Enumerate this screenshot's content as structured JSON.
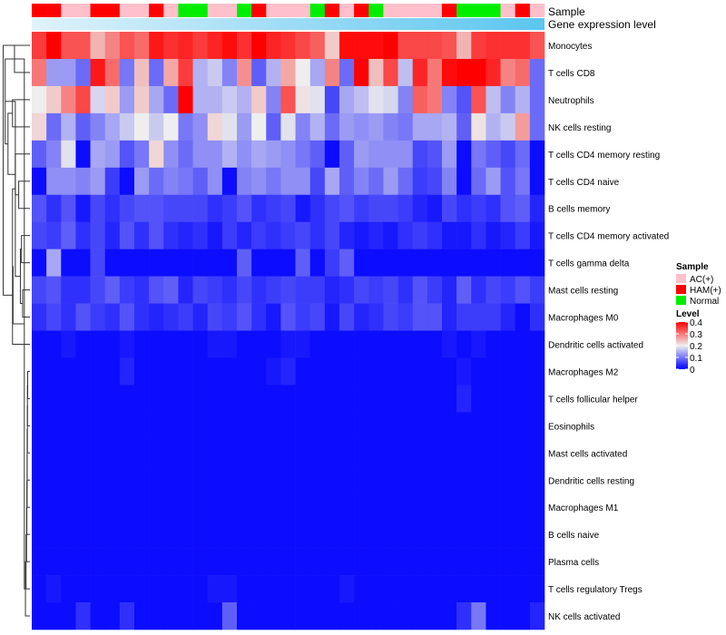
{
  "chart_data": {
    "type": "heatmap",
    "annotation_tracks": [
      {
        "name": "Sample",
        "values": [
          "HAM(+)",
          "HAM(+)",
          "AC(+)",
          "AC(+)",
          "HAM(+)",
          "HAM(+)",
          "AC(+)",
          "AC(+)",
          "HAM(+)",
          "AC(+)",
          "Normal",
          "Normal",
          "AC(+)",
          "AC(+)",
          "Normal",
          "HAM(+)",
          "AC(+)",
          "AC(+)",
          "AC(+)",
          "Normal",
          "HAM(+)",
          "AC(+)",
          "HAM(+)",
          "Normal",
          "AC(+)",
          "AC(+)",
          "AC(+)",
          "AC(+)",
          "HAM(+)",
          "Normal",
          "Normal",
          "Normal",
          "AC(+)",
          "HAM(+)",
          "AC(+)"
        ]
      },
      {
        "name": "Gene expression level",
        "gradient": [
          "#e0f3fb",
          "#5bc6ef"
        ]
      }
    ],
    "rows": [
      "Monocytes",
      "T cells CD8",
      "Neutrophils",
      "NK cells resting",
      "T cells CD4 memory resting",
      "T cells CD4 naive",
      "B cells memory",
      "T cells CD4 memory activated",
      "T cells gamma delta",
      "Mast cells resting",
      "Macrophages M0",
      "Dendritic cells activated",
      "Macrophages M2",
      "T cells follicular helper",
      "Eosinophils",
      "Mast cells activated",
      "Dendritic cells resting",
      "Macrophages M1",
      "B cells naive",
      "Plasma cells",
      "T cells regulatory  Tregs",
      "NK cells activated"
    ],
    "values": [
      [
        0.35,
        0.41,
        0.33,
        0.33,
        0.25,
        0.29,
        0.33,
        0.31,
        0.38,
        0.36,
        0.37,
        0.35,
        0.37,
        0.39,
        0.36,
        0.41,
        0.37,
        0.36,
        0.34,
        0.32,
        0.23,
        0.39,
        0.39,
        0.39,
        0.4,
        0.34,
        0.34,
        0.34,
        0.33,
        0.25,
        0.35,
        0.36,
        0.36,
        0.36,
        0.33
      ],
      [
        0.3,
        0.13,
        0.13,
        0.09,
        0.38,
        0.31,
        0.1,
        0.24,
        0.09,
        0.26,
        0.35,
        0.15,
        0.17,
        0.11,
        0.28,
        0.08,
        0.15,
        0.26,
        0.2,
        0.14,
        0.29,
        0.09,
        0.4,
        0.24,
        0.34,
        0.16,
        0.37,
        0.3,
        0.39,
        0.41,
        0.42,
        0.37,
        0.29,
        0.31,
        0.09
      ],
      [
        0.2,
        0.23,
        0.29,
        0.34,
        0.18,
        0.23,
        0.13,
        0.23,
        0.14,
        0.09,
        0.42,
        0.15,
        0.15,
        0.17,
        0.15,
        0.23,
        0.11,
        0.33,
        0.21,
        0.19,
        0.06,
        0.14,
        0.16,
        0.19,
        0.18,
        0.11,
        0.32,
        0.3,
        0.11,
        0.07,
        0.33,
        0.16,
        0.11,
        0.15,
        0.09
      ],
      [
        0.22,
        0.09,
        0.15,
        0.08,
        0.11,
        0.14,
        0.17,
        0.2,
        0.17,
        0.2,
        0.1,
        0.12,
        0.22,
        0.19,
        0.13,
        0.2,
        0.08,
        0.19,
        0.11,
        0.15,
        0.09,
        0.13,
        0.12,
        0.13,
        0.11,
        0.1,
        0.14,
        0.14,
        0.15,
        0.08,
        0.21,
        0.15,
        0.17,
        0.27,
        0.09
      ],
      [
        0.08,
        0.11,
        0.19,
        0.01,
        0.14,
        0.13,
        0.07,
        0.1,
        0.22,
        0.12,
        0.09,
        0.12,
        0.12,
        0.15,
        0.12,
        0.14,
        0.13,
        0.12,
        0.1,
        0.08,
        0.01,
        0.08,
        0.13,
        0.12,
        0.12,
        0.12,
        0.06,
        0.07,
        0.13,
        0.01,
        0.1,
        0.08,
        0.06,
        0.09,
        0.01
      ],
      [
        0.01,
        0.12,
        0.12,
        0.11,
        0.13,
        0.05,
        0.01,
        0.13,
        0.09,
        0.11,
        0.1,
        0.08,
        0.12,
        0.01,
        0.11,
        0.12,
        0.1,
        0.12,
        0.12,
        0.06,
        0.14,
        0.08,
        0.11,
        0.09,
        0.13,
        0.09,
        0.05,
        0.06,
        0.11,
        0.01,
        0.09,
        0.13,
        0.07,
        0.1,
        0.01
      ],
      [
        0.07,
        0.04,
        0.07,
        0.02,
        0.06,
        0.04,
        0.06,
        0.07,
        0.07,
        0.06,
        0.06,
        0.06,
        0.04,
        0.05,
        0.07,
        0.04,
        0.05,
        0.06,
        0.02,
        0.04,
        0.06,
        0.07,
        0.05,
        0.06,
        0.06,
        0.05,
        0.03,
        0.02,
        0.06,
        0.04,
        0.05,
        0.04,
        0.07,
        0.08,
        0.03
      ],
      [
        0.06,
        0.05,
        0.08,
        0.04,
        0.06,
        0.03,
        0.07,
        0.04,
        0.07,
        0.04,
        0.03,
        0.04,
        0.02,
        0.05,
        0.03,
        0.05,
        0.04,
        0.05,
        0.06,
        0.04,
        0.06,
        0.03,
        0.02,
        0.03,
        0.02,
        0.04,
        0.05,
        0.04,
        0.02,
        0.02,
        0.04,
        0.02,
        0.03,
        0.05,
        0.02
      ],
      [
        0.01,
        0.14,
        0.01,
        0.01,
        0.06,
        0.01,
        0.01,
        0.01,
        0.01,
        0.01,
        0.01,
        0.01,
        0.01,
        0.01,
        0.08,
        0.01,
        0.01,
        0.01,
        0.08,
        0.01,
        0.05,
        0.08,
        0.01,
        0.01,
        0.01,
        0.01,
        0.01,
        0.01,
        0.01,
        0.01,
        0.01,
        0.01,
        0.01,
        0.01,
        0.01
      ],
      [
        0.06,
        0.07,
        0.04,
        0.04,
        0.06,
        0.08,
        0.05,
        0.04,
        0.07,
        0.08,
        0.03,
        0.06,
        0.05,
        0.04,
        0.06,
        0.04,
        0.05,
        0.06,
        0.05,
        0.05,
        0.03,
        0.04,
        0.06,
        0.05,
        0.06,
        0.04,
        0.07,
        0.05,
        0.03,
        0.08,
        0.04,
        0.06,
        0.05,
        0.07,
        0.05
      ],
      [
        0.04,
        0.06,
        0.04,
        0.07,
        0.05,
        0.04,
        0.07,
        0.04,
        0.03,
        0.04,
        0.05,
        0.03,
        0.06,
        0.05,
        0.07,
        0.04,
        0.02,
        0.07,
        0.05,
        0.06,
        0.02,
        0.06,
        0.03,
        0.04,
        0.06,
        0.05,
        0.07,
        0.07,
        0.03,
        0.05,
        0.05,
        0.05,
        0.03,
        0.01,
        0.04
      ],
      [
        0.01,
        0.01,
        0.02,
        0.01,
        0.01,
        0.01,
        0.02,
        0.01,
        0.01,
        0.01,
        0.01,
        0.01,
        0.02,
        0.02,
        0.01,
        0.01,
        0.01,
        0.02,
        0.02,
        0.01,
        0.01,
        0.01,
        0.01,
        0.01,
        0.01,
        0.01,
        0.01,
        0.01,
        0.02,
        0.01,
        0.02,
        0.01,
        0.01,
        0.01,
        0.01
      ],
      [
        0.01,
        0.01,
        0.01,
        0.01,
        0.01,
        0.01,
        0.03,
        0.01,
        0.01,
        0.01,
        0.01,
        0.01,
        0.01,
        0.01,
        0.01,
        0.01,
        0.02,
        0.03,
        0.01,
        0.01,
        0.01,
        0.01,
        0.01,
        0.01,
        0.01,
        0.01,
        0.01,
        0.01,
        0.01,
        0.02,
        0.01,
        0.01,
        0.01,
        0.01,
        0.01
      ],
      [
        0.01,
        0.01,
        0.01,
        0.01,
        0.01,
        0.01,
        0.01,
        0.01,
        0.01,
        0.01,
        0.01,
        0.01,
        0.01,
        0.01,
        0.01,
        0.01,
        0.01,
        0.01,
        0.01,
        0.01,
        0.01,
        0.01,
        0.01,
        0.01,
        0.01,
        0.01,
        0.01,
        0.01,
        0.01,
        0.03,
        0.01,
        0.01,
        0.01,
        0.01,
        0.01
      ],
      [
        0.01,
        0.01,
        0.01,
        0.01,
        0.01,
        0.01,
        0.01,
        0.01,
        0.01,
        0.01,
        0.01,
        0.01,
        0.01,
        0.01,
        0.01,
        0.01,
        0.01,
        0.01,
        0.01,
        0.01,
        0.01,
        0.01,
        0.01,
        0.01,
        0.01,
        0.01,
        0.01,
        0.01,
        0.01,
        0.01,
        0.01,
        0.01,
        0.01,
        0.01,
        0.01
      ],
      [
        0.01,
        0.01,
        0.01,
        0.01,
        0.01,
        0.01,
        0.01,
        0.01,
        0.01,
        0.01,
        0.01,
        0.01,
        0.01,
        0.01,
        0.01,
        0.01,
        0.01,
        0.01,
        0.01,
        0.01,
        0.01,
        0.01,
        0.01,
        0.01,
        0.01,
        0.01,
        0.01,
        0.01,
        0.01,
        0.01,
        0.01,
        0.01,
        0.01,
        0.01,
        0.01
      ],
      [
        0.01,
        0.01,
        0.01,
        0.01,
        0.01,
        0.01,
        0.01,
        0.01,
        0.01,
        0.01,
        0.01,
        0.01,
        0.01,
        0.01,
        0.01,
        0.01,
        0.01,
        0.01,
        0.01,
        0.01,
        0.01,
        0.01,
        0.01,
        0.01,
        0.01,
        0.01,
        0.01,
        0.01,
        0.01,
        0.01,
        0.01,
        0.01,
        0.01,
        0.01,
        0.01
      ],
      [
        0.01,
        0.01,
        0.01,
        0.01,
        0.01,
        0.01,
        0.01,
        0.01,
        0.01,
        0.01,
        0.01,
        0.01,
        0.01,
        0.01,
        0.01,
        0.01,
        0.01,
        0.01,
        0.01,
        0.01,
        0.01,
        0.01,
        0.01,
        0.01,
        0.01,
        0.01,
        0.01,
        0.01,
        0.01,
        0.01,
        0.01,
        0.01,
        0.01,
        0.01,
        0.01
      ],
      [
        0.01,
        0.01,
        0.01,
        0.01,
        0.01,
        0.01,
        0.01,
        0.01,
        0.01,
        0.01,
        0.01,
        0.01,
        0.01,
        0.01,
        0.01,
        0.01,
        0.01,
        0.01,
        0.01,
        0.01,
        0.01,
        0.01,
        0.01,
        0.01,
        0.01,
        0.01,
        0.01,
        0.01,
        0.01,
        0.01,
        0.01,
        0.01,
        0.01,
        0.01,
        0.01
      ],
      [
        0.01,
        0.01,
        0.01,
        0.01,
        0.01,
        0.01,
        0.01,
        0.01,
        0.01,
        0.01,
        0.01,
        0.01,
        0.01,
        0.01,
        0.01,
        0.01,
        0.01,
        0.01,
        0.01,
        0.01,
        0.01,
        0.01,
        0.01,
        0.01,
        0.01,
        0.01,
        0.01,
        0.01,
        0.01,
        0.01,
        0.01,
        0.01,
        0.01,
        0.01,
        0.01
      ],
      [
        0.01,
        0.02,
        0.01,
        0.01,
        0.01,
        0.01,
        0.01,
        0.01,
        0.01,
        0.01,
        0.01,
        0.01,
        0.02,
        0.02,
        0.01,
        0.01,
        0.01,
        0.01,
        0.01,
        0.01,
        0.01,
        0.02,
        0.01,
        0.01,
        0.01,
        0.01,
        0.01,
        0.01,
        0.01,
        0.01,
        0.01,
        0.01,
        0.01,
        0.01,
        0.01
      ],
      [
        0.01,
        0.01,
        0.01,
        0.04,
        0.01,
        0.01,
        0.04,
        0.01,
        0.01,
        0.01,
        0.01,
        0.01,
        0.01,
        0.08,
        0.01,
        0.01,
        0.01,
        0.01,
        0.01,
        0.01,
        0.01,
        0.01,
        0.01,
        0.01,
        0.01,
        0.01,
        0.01,
        0.01,
        0.01,
        0.04,
        0.1,
        0.01,
        0.01,
        0.01,
        0.03
      ]
    ],
    "legends": {
      "sample": {
        "title": "Sample",
        "entries": [
          {
            "label": "AC(+)",
            "color": "#ffc0cb"
          },
          {
            "label": "HAM(+)",
            "color": "#ff0000"
          },
          {
            "label": "Normal",
            "color": "#00ee00"
          }
        ]
      },
      "level": {
        "title": "Level",
        "min": 0,
        "max": 0.4,
        "ticks": [
          0.4,
          0.3,
          0.2,
          0.1,
          0
        ],
        "tick_labels": [
          "0.4",
          "0.3",
          "0.2",
          "0.1",
          "0"
        ],
        "colors": {
          "low": "#0000ff",
          "mid": "#eeeeee",
          "high": "#ff0000",
          "mid_value": 0.2
        }
      }
    },
    "row_dendrogram": {
      "merges": [
        [
          0,
          1,
          0.55
        ],
        [
          5,
          6,
          0.4
        ],
        [
          4,
          23,
          0.52
        ],
        [
          2,
          3,
          0.62
        ],
        [
          24,
          25,
          0.78
        ],
        [
          26,
          22,
          0.88
        ],
        [
          7,
          8,
          0.3
        ],
        [
          9,
          10,
          0.26
        ],
        [
          28,
          29,
          0.34
        ],
        [
          27,
          30,
          0.52
        ],
        [
          31,
          11,
          0.62
        ],
        [
          12,
          13,
          0.08
        ],
        [
          33,
          14,
          0.09
        ],
        [
          34,
          15,
          0.09
        ],
        [
          35,
          16,
          0.1
        ],
        [
          36,
          17,
          0.1
        ],
        [
          37,
          18,
          0.11
        ],
        [
          38,
          19,
          0.12
        ],
        [
          39,
          20,
          0.14
        ],
        [
          40,
          21,
          0.16
        ],
        [
          41,
          22,
          0.2
        ],
        [
          42,
          32,
          0.6
        ],
        [
          43,
          0,
          0.95
        ]
      ]
    }
  }
}
